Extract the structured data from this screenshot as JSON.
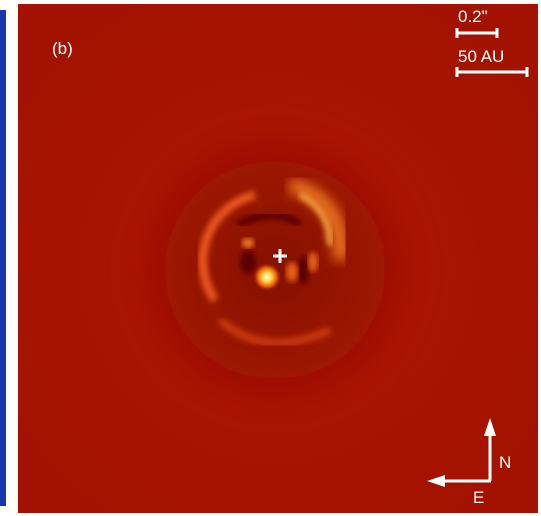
{
  "panel_label": "(b)",
  "scale_bars": [
    {
      "label": "0.2\""
    },
    {
      "label": "50 AU"
    }
  ],
  "compass": {
    "north": "N",
    "east": "E"
  }
}
